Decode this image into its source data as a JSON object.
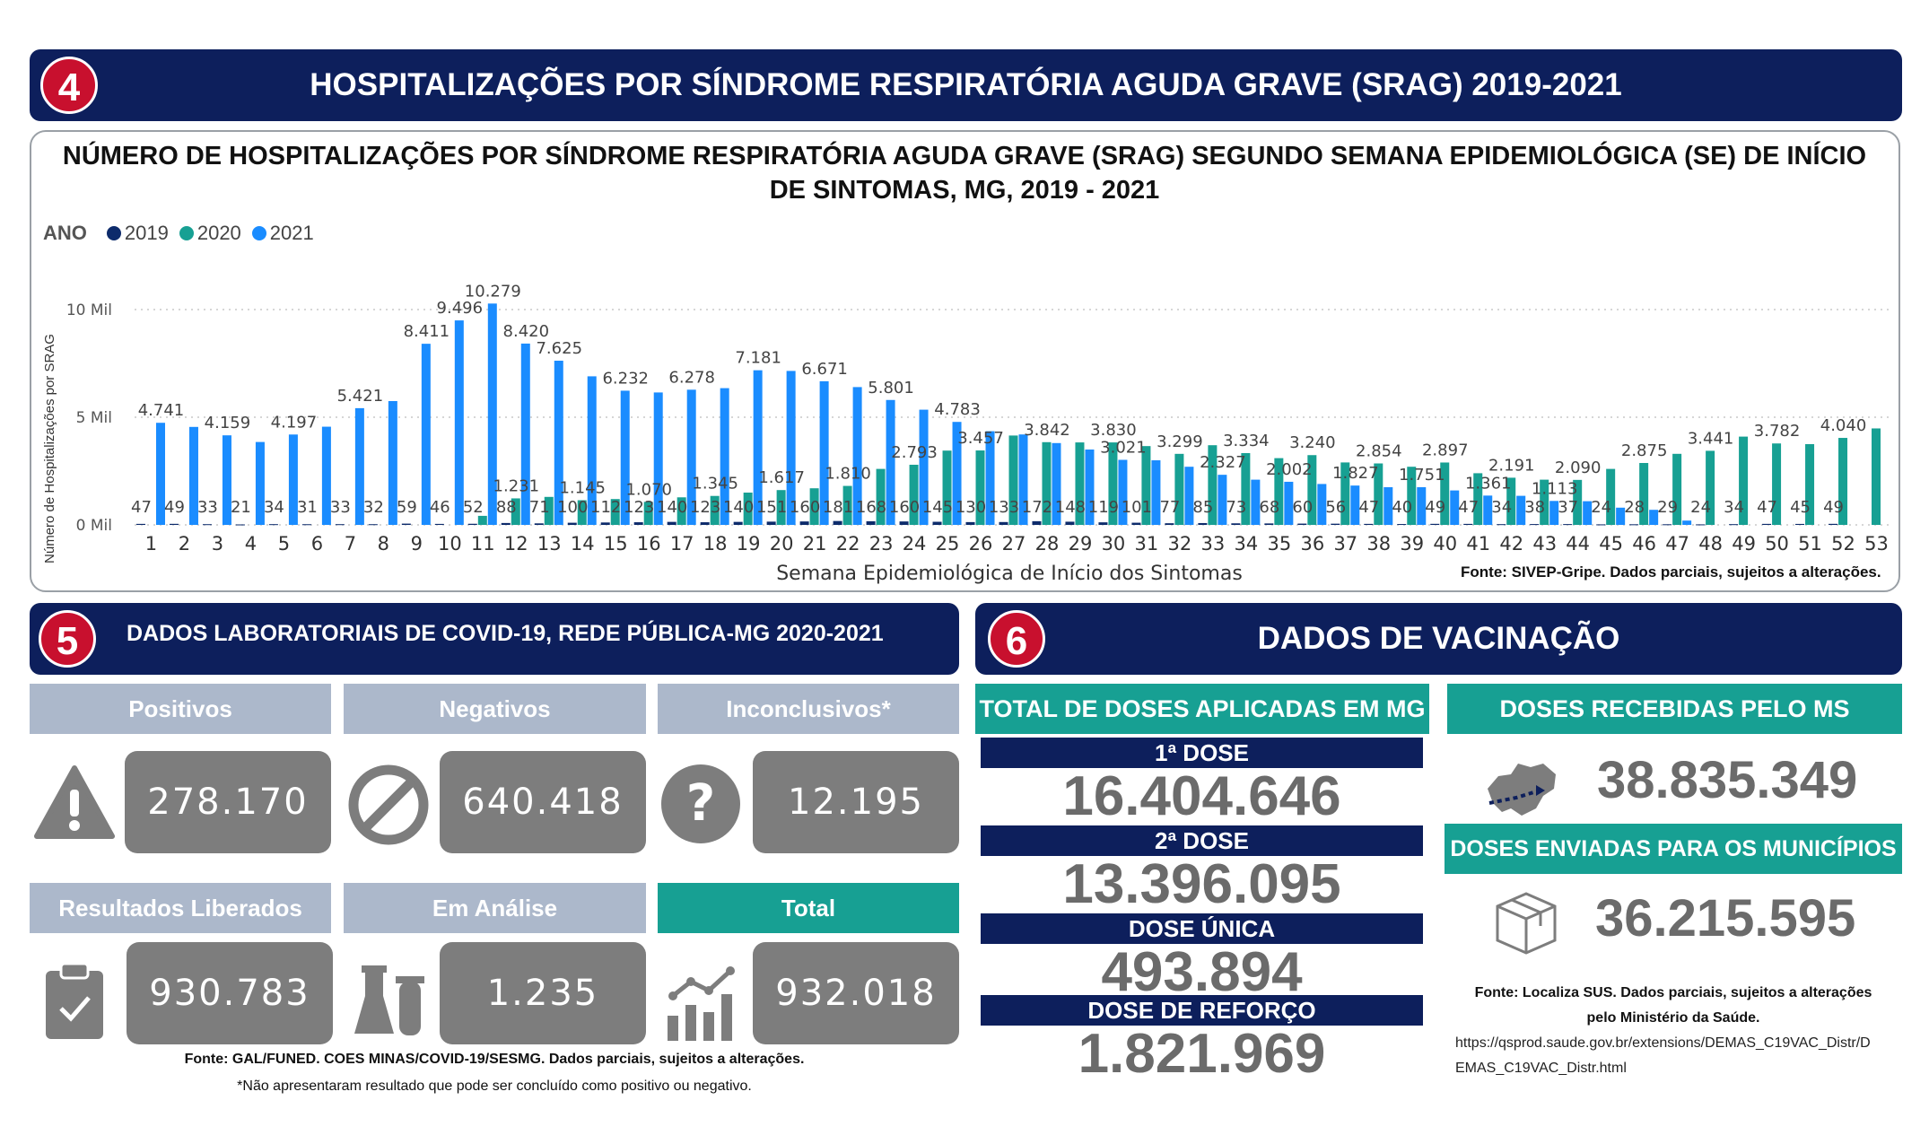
{
  "section4": {
    "badge": "4",
    "title": "HOSPITALIZAÇÕES POR SÍNDROME RESPIRATÓRIA AGUDA GRAVE (SRAG) 2019-2021"
  },
  "chart_data": {
    "type": "bar",
    "title": "NÚMERO DE HOSPITALIZAÇÕES POR SÍNDROME RESPIRATÓRIA AGUDA GRAVE (SRAG) SEGUNDO SEMANA EPIDEMIOLÓGICA (SE) DE INÍCIO DE SINTOMAS, MG, 2019 - 2021",
    "legend_title": "ANO",
    "xlabel": "Semana Epidemiológica de Início dos Sintomas",
    "ylabel": "Número de Hospitalizações por SRAG",
    "ylim": [
      0,
      10500
    ],
    "yticks": [
      {
        "value": 0,
        "label": "0 Mil"
      },
      {
        "value": 5000,
        "label": "5 Mil"
      },
      {
        "value": 10000,
        "label": "10 Mil"
      }
    ],
    "grid": "horizontal dotted",
    "legend_position": "top-left",
    "categories": [
      "1",
      "2",
      "3",
      "4",
      "5",
      "6",
      "7",
      "8",
      "9",
      "10",
      "11",
      "12",
      "13",
      "14",
      "15",
      "16",
      "17",
      "18",
      "19",
      "20",
      "21",
      "22",
      "23",
      "24",
      "25",
      "26",
      "27",
      "28",
      "29",
      "30",
      "31",
      "32",
      "33",
      "34",
      "35",
      "36",
      "37",
      "38",
      "39",
      "40",
      "41",
      "42",
      "43",
      "44",
      "45",
      "46",
      "47",
      "48",
      "49",
      "50",
      "51",
      "52",
      "53"
    ],
    "series": [
      {
        "name": "2019",
        "color": "#0d2b6b",
        "values": [
          47,
          49,
          33,
          21,
          34,
          31,
          33,
          32,
          59,
          46,
          52,
          88,
          71,
          100,
          112,
          123,
          140,
          123,
          140,
          151,
          160,
          181,
          168,
          160,
          145,
          130,
          133,
          172,
          148,
          119,
          101,
          77,
          85,
          73,
          68,
          60,
          56,
          47,
          40,
          49,
          47,
          34,
          38,
          37,
          24,
          28,
          29,
          24,
          34,
          47,
          45,
          49,
          0
        ],
        "labels": [
          "47",
          "49",
          "33",
          "21",
          "34",
          "31",
          "33",
          "32",
          "59",
          "46",
          "52",
          "88",
          "71",
          "100",
          "112",
          "123",
          "140",
          "123",
          "140",
          "151",
          "160",
          "181",
          "168",
          "160",
          "145",
          "130",
          "133",
          "172",
          "148",
          "119",
          "101",
          "77",
          "85",
          "73",
          "68",
          "60",
          "56",
          "47",
          "40",
          "49",
          "47",
          "34",
          "38",
          "37",
          "24",
          "28",
          "29",
          "24",
          "34",
          "47",
          "45",
          "49",
          ""
        ]
      },
      {
        "name": "2020",
        "color": "#17a093",
        "values": [
          0,
          0,
          0,
          0,
          0,
          0,
          0,
          0,
          0,
          0,
          420,
          1231,
          1300,
          1145,
          1200,
          1070,
          1280,
          1345,
          1500,
          1617,
          1700,
          1810,
          2600,
          2793,
          3450,
          3457,
          4150,
          3842,
          3830,
          3830,
          3660,
          3299,
          3700,
          3334,
          3100,
          3240,
          2900,
          2854,
          2700,
          2897,
          2400,
          2191,
          2100,
          2090,
          2600,
          2875,
          3300,
          3441,
          4100,
          3782,
          3750,
          4040,
          4480
        ],
        "labels": [
          "",
          "",
          "",
          "",
          "",
          "",
          "",
          "",
          "",
          "",
          "",
          "1.231",
          "",
          "1.145",
          "",
          "1.070",
          "",
          "1.345",
          "",
          "1.617",
          "",
          "1.810",
          "",
          "2.793",
          "",
          "3.457",
          "",
          "3.842",
          "",
          "3.830",
          "",
          "3.299",
          "",
          "3.334",
          "",
          "3.240",
          "",
          "2.854",
          "",
          "2.897",
          "",
          "2.191",
          "",
          "2.090",
          "",
          "2.875",
          "",
          "3.441",
          "",
          "3.782",
          "",
          "4.040",
          ""
        ]
      },
      {
        "name": "2021",
        "color": "#1a8cff",
        "values": [
          4741,
          4550,
          4159,
          3850,
          4197,
          4560,
          5421,
          5750,
          8411,
          9496,
          10279,
          8420,
          7625,
          6900,
          6232,
          6150,
          6278,
          6350,
          7181,
          7150,
          6671,
          6400,
          5801,
          5350,
          4783,
          4350,
          4200,
          3800,
          3500,
          3021,
          3000,
          2700,
          2327,
          2100,
          2002,
          1900,
          1827,
          1750,
          1751,
          1600,
          1361,
          1350,
          1113,
          1100,
          800,
          700,
          200,
          0,
          0,
          0,
          0,
          0,
          0
        ],
        "labels": [
          "4.741",
          "",
          "4.159",
          "",
          "4.197",
          "",
          "5.421",
          "",
          "8.411",
          "9.496",
          "10.279",
          "8.420",
          "7.625",
          "",
          "6.232",
          "",
          "6.278",
          "",
          "7.181",
          "",
          "6.671",
          "",
          "5.801",
          "",
          "4.783",
          "",
          "",
          "",
          "",
          "3.021",
          "",
          "",
          "2.327",
          "",
          "2.002",
          "",
          "1.827",
          "",
          "1.751",
          "",
          "1.361",
          "",
          "1.113",
          "",
          "",
          "",
          "",
          "",
          "",
          "",
          "",
          "",
          ""
        ]
      }
    ]
  },
  "chart_source": "Fonte: SIVEP-Gripe. Dados parciais, sujeitos a alterações.",
  "section5": {
    "badge": "5",
    "title": "DADOS LABORATORIAIS DE COVID-19, REDE PÚBLICA-MG 2020-2021",
    "cards": [
      {
        "label": "Positivos",
        "value": "278.170",
        "icon": "warning-icon"
      },
      {
        "label": "Negativos",
        "value": "640.418",
        "icon": "prohibited-icon"
      },
      {
        "label": "Inconclusivos*",
        "value": "12.195",
        "icon": "question-icon"
      },
      {
        "label": "Resultados Liberados",
        "value": "930.783",
        "icon": "clipboard-check-icon"
      },
      {
        "label": "Em Análise",
        "value": "1.235",
        "icon": "lab-flask-icon"
      },
      {
        "label": "Total",
        "value": "932.018",
        "icon": "bar-chart-icon"
      }
    ],
    "source": "Fonte: GAL/FUNED. COES MINAS/COVID-19/SESMG. Dados parciais, sujeitos a alterações.",
    "footnote": "*Não apresentaram resultado que pode ser concluído como positivo ou negativo.",
    "colors": {
      "header_gray": "#acb8cb",
      "header_teal": "#17a093",
      "value_box": "#7d7d7d"
    }
  },
  "section6": {
    "badge": "6",
    "title": "DADOS DE VACINAÇÃO",
    "total_header": "TOTAL DE DOSES APLICADAS EM MG",
    "doses": [
      {
        "label": "1ª DOSE",
        "value": "16.404.646"
      },
      {
        "label": "2ª DOSE",
        "value": "13.396.095"
      },
      {
        "label": "DOSE ÚNICA",
        "value": "493.894"
      },
      {
        "label": "DOSE DE REFORÇO",
        "value": "1.821.969"
      }
    ],
    "received_header": "DOSES RECEBIDAS PELO MS",
    "received_value": "38.835.349",
    "sent_header": "DOSES ENVIADAS PARA OS MUNICÍPIOS",
    "sent_value": "36.215.595",
    "source_line1": "Fonte: Localiza SUS. Dados parciais, sujeitos a alterações",
    "source_line2": "pelo Ministério da Saúde.",
    "url_line1": "https://qsprod.saude.gov.br/extensions/DEMAS_C19VAC_Distr/D",
    "url_line2": "EMAS_C19VAC_Distr.html",
    "colors": {
      "navy": "#0d1f5c",
      "teal": "#17a093"
    }
  }
}
